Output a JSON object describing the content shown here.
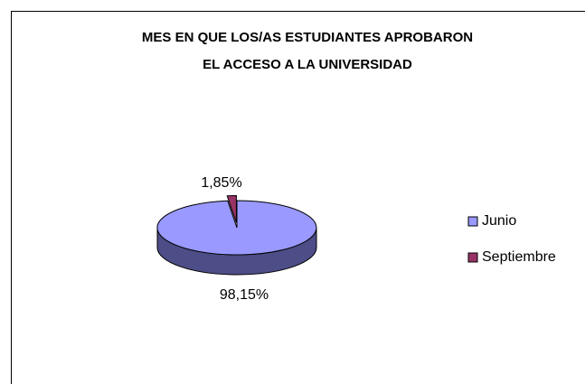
{
  "chart_data": {
    "type": "pie",
    "title": [
      "MES EN QUE LOS/AS ESTUDIANTES APROBARON",
      "EL ACCESO A LA UNIVERSIDAD"
    ],
    "categories": [
      "Junio",
      "Septiembre"
    ],
    "values": [
      98.15,
      1.85
    ],
    "value_labels": [
      "98,15%",
      "1,85%"
    ],
    "colors": [
      "#9999ff",
      "#993366"
    ],
    "side_colors": [
      "#4d4d88",
      "#4d1a33"
    ],
    "legend": "right"
  }
}
